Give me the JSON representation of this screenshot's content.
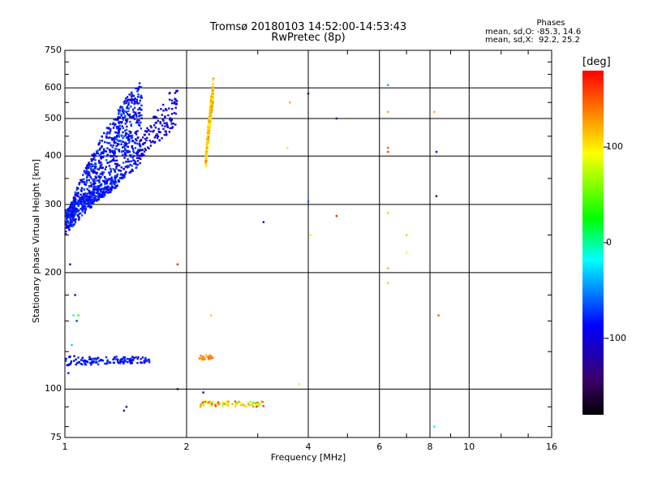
{
  "title_line1": "Tromsø 20180103 14:52:00-14:53:43",
  "title_line2": "RwPretec (8p)",
  "phase_box": {
    "heading": "Phases",
    "line_o": "mean, sd,O: -85.3, 14.6",
    "line_x": "mean, sd,X:  92.2, 25.2"
  },
  "chart_data": {
    "type": "scatter",
    "xlabel": "Frequency [MHz]",
    "ylabel": "Stationary phase Virtual Height [km]",
    "x_scale": "log",
    "y_scale": "log",
    "xlim": [
      1,
      16
    ],
    "ylim": [
      75,
      750
    ],
    "x_tick_labels": [
      "1",
      "2",
      "4",
      "6",
      "8",
      "10",
      "16"
    ],
    "x_ticks": [
      1,
      2,
      4,
      6,
      8,
      10,
      16
    ],
    "y_tick_labels": [
      "75",
      "100",
      "200",
      "300",
      "400",
      "500",
      "600",
      "750"
    ],
    "y_ticks": [
      75,
      100,
      200,
      300,
      400,
      500,
      600,
      750
    ],
    "grid": true,
    "colorbar": {
      "label": "[deg]",
      "range": [
        -180,
        180
      ],
      "tick_labels": [
        "100",
        "0",
        "-100"
      ],
      "ticks": [
        100,
        0,
        -100
      ],
      "colors": [
        "#000000",
        "#3b0068",
        "#0000ff",
        "#00ffff",
        "#00ff00",
        "#ffff00",
        "#ff0000"
      ]
    },
    "series": [
      {
        "kind": "band",
        "f_range": [
          1.0,
          1.55
        ],
        "h_start": [
          250,
          275
        ],
        "h_end": [
          380,
          640
        ],
        "phase": [
          -110,
          -60
        ],
        "density": 900
      },
      {
        "kind": "band",
        "f_range": [
          1.0,
          1.35
        ],
        "h_start": [
          270,
          290
        ],
        "h_end": [
          330,
          360
        ],
        "phase": [
          -95,
          -70
        ],
        "density": 200
      },
      {
        "kind": "band",
        "f_range": [
          1.5,
          1.9
        ],
        "h_start": [
          380,
          420
        ],
        "h_end": [
          480,
          620
        ],
        "phase": [
          -115,
          -90
        ],
        "density": 140
      },
      {
        "kind": "band",
        "f_range": [
          1.0,
          1.62
        ],
        "h_start": [
          115,
          122
        ],
        "h_end": [
          117,
          121
        ],
        "phase": [
          -100,
          -70
        ],
        "density": 140
      },
      {
        "kind": "band",
        "f_range": [
          2.23,
          2.33
        ],
        "h_start": [
          370,
          400
        ],
        "h_end": [
          560,
          640
        ],
        "phase": [
          80,
          140
        ],
        "density": 190
      },
      {
        "kind": "band",
        "f_range": [
          2.15,
          3.1
        ],
        "h_start": [
          90,
          93
        ],
        "h_end": [
          90,
          93
        ],
        "phase": [
          40,
          160
        ],
        "density": 70
      },
      {
        "kind": "band",
        "f_range": [
          2.15,
          2.33
        ],
        "h_start": [
          119,
          123
        ],
        "h_end": [
          119,
          123
        ],
        "phase": [
          110,
          150
        ],
        "density": 18
      },
      {
        "kind": "points",
        "points": [
          [
            1.05,
            155,
            -20
          ],
          [
            1.08,
            155,
            40
          ],
          [
            1.04,
            130,
            -30
          ],
          [
            1.07,
            150,
            -70
          ],
          [
            1.02,
            110,
            -80
          ],
          [
            1.06,
            175,
            -105
          ],
          [
            1.03,
            210,
            -130
          ],
          [
            1.9,
            210,
            170
          ],
          [
            1.9,
            100,
            -150
          ],
          [
            1.42,
            90,
            -130
          ],
          [
            1.4,
            88,
            -130
          ],
          [
            3.1,
            270,
            -130
          ],
          [
            3.55,
            420,
            80
          ],
          [
            3.6,
            550,
            120
          ],
          [
            4.0,
            580,
            -140
          ],
          [
            4.05,
            250,
            100
          ],
          [
            4.0,
            305,
            -60
          ],
          [
            4.7,
            500,
            -140
          ],
          [
            4.7,
            280,
            170
          ],
          [
            6.3,
            610,
            -40
          ],
          [
            6.3,
            520,
            120
          ],
          [
            6.3,
            420,
            150
          ],
          [
            6.3,
            410,
            160
          ],
          [
            6.3,
            285,
            110
          ],
          [
            6.3,
            205,
            120
          ],
          [
            6.3,
            188,
            110
          ],
          [
            7.0,
            250,
            110
          ],
          [
            7.0,
            225,
            90
          ],
          [
            8.2,
            520,
            120
          ],
          [
            8.3,
            410,
            -100
          ],
          [
            8.3,
            315,
            -140
          ],
          [
            8.4,
            155,
            150
          ],
          [
            8.2,
            80,
            -20
          ],
          [
            3.8,
            103,
            100
          ],
          [
            2.3,
            155,
            110
          ],
          [
            2.2,
            98,
            -110
          ]
        ]
      }
    ]
  }
}
